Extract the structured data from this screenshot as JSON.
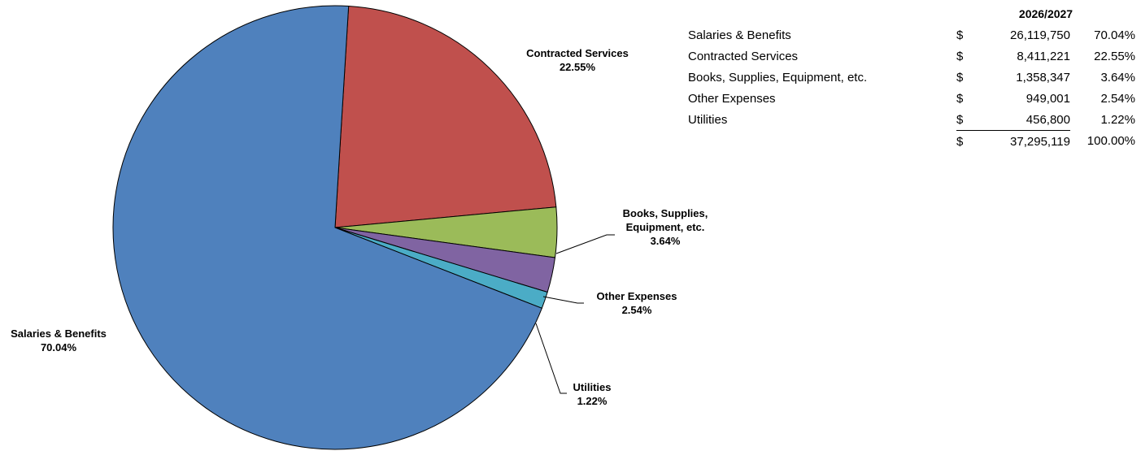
{
  "chart_data": {
    "type": "pie",
    "start_angle_deg": -86.5,
    "slices": [
      {
        "name": "Contracted Services",
        "label_lines": [
          "Contracted Services"
        ],
        "percent_label": "22.55%",
        "value": 22.55,
        "color": "#C0504D",
        "leader": false
      },
      {
        "name": "Books, Supplies, Equipment, etc.",
        "label_lines": [
          "Books, Supplies,",
          "Equipment, etc."
        ],
        "percent_label": "3.64%",
        "value": 3.64,
        "color": "#9BBB59",
        "leader": true
      },
      {
        "name": "Other Expenses",
        "label_lines": [
          "Other Expenses"
        ],
        "percent_label": "2.54%",
        "value": 2.54,
        "color": "#8064A2",
        "leader": true
      },
      {
        "name": "Utilities",
        "label_lines": [
          "Utilities"
        ],
        "percent_label": "1.22%",
        "value": 1.22,
        "color": "#4BACC6",
        "leader": true
      },
      {
        "name": "Salaries & Benefits",
        "label_lines": [
          "Salaries & Benefits"
        ],
        "percent_label": "70.04%",
        "value": 70.04,
        "color": "#4F81BD",
        "leader": false
      }
    ]
  },
  "table": {
    "header": "2026/2027",
    "currency": "$",
    "rows": [
      {
        "name": "Salaries & Benefits",
        "amount": "26,119,750",
        "percent": "70.04%"
      },
      {
        "name": "Contracted Services",
        "amount": "8,411,221",
        "percent": "22.55%"
      },
      {
        "name": "Books, Supplies, Equipment, etc.",
        "amount": "1,358,347",
        "percent": "3.64%"
      },
      {
        "name": "Other Expenses",
        "amount": "949,001",
        "percent": "2.54%"
      },
      {
        "name": "Utilities",
        "amount": "456,800",
        "percent": "1.22%"
      }
    ],
    "total": {
      "amount": "37,295,119",
      "percent": "100.00%"
    }
  }
}
